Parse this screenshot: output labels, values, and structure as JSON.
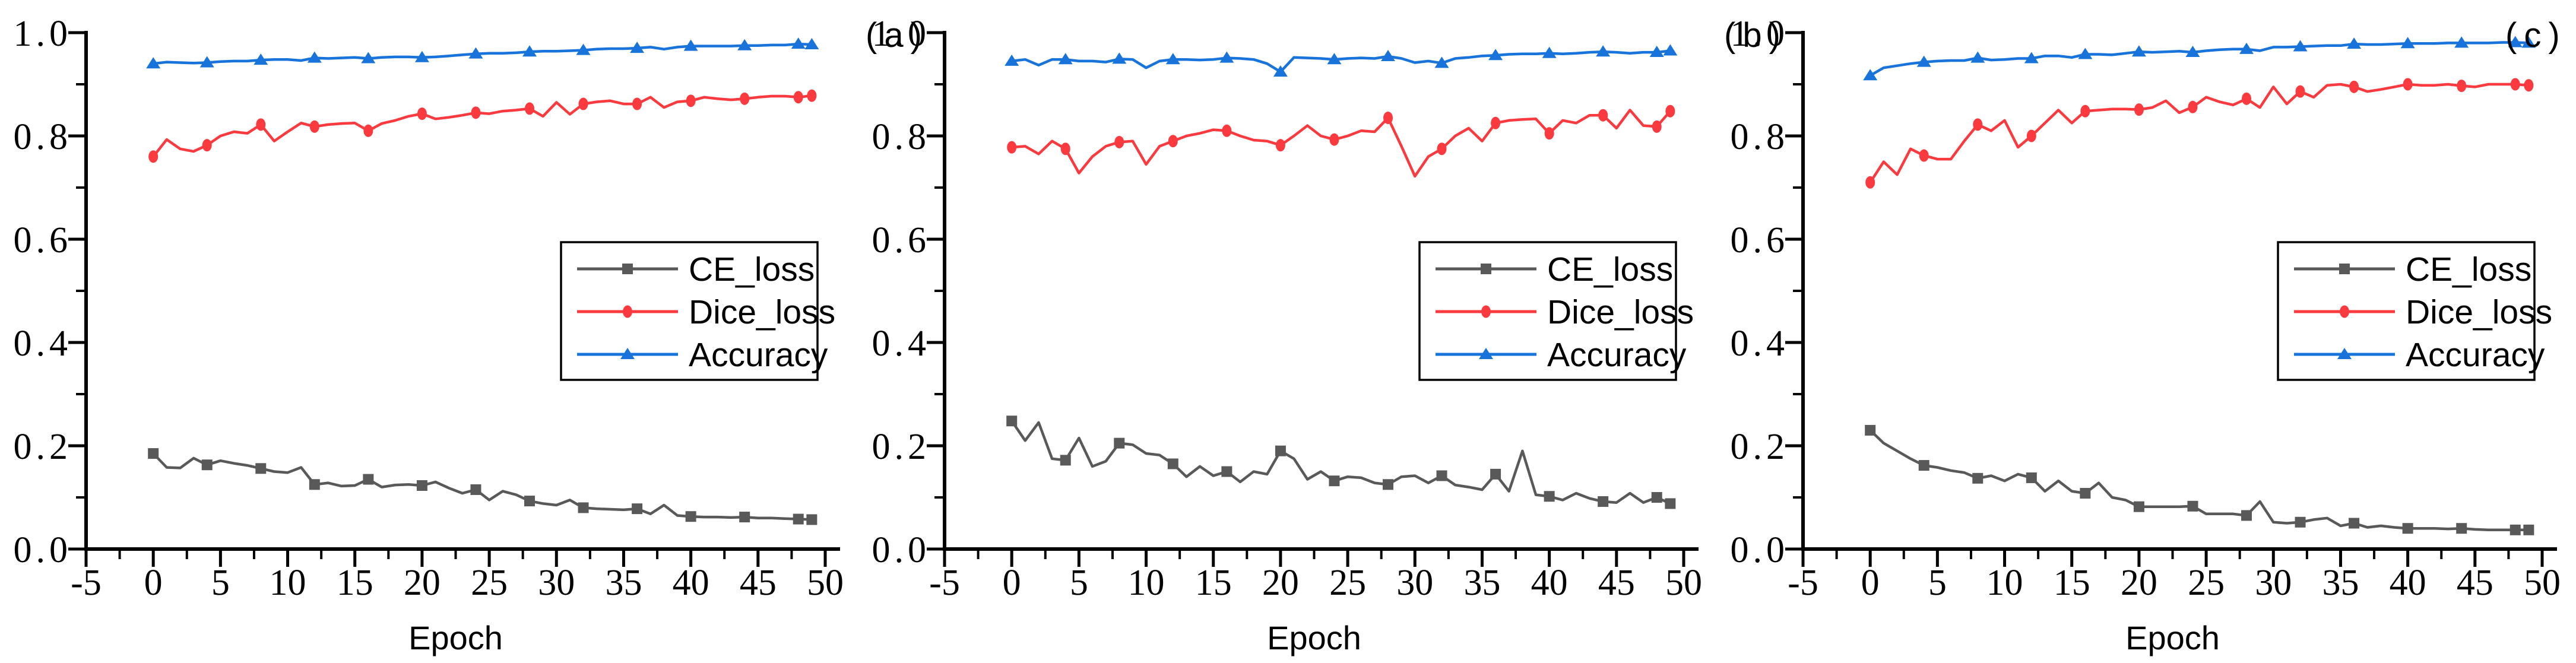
{
  "figure": {
    "background": "#ffffff",
    "panel_labels": [
      "(a)",
      "(b)",
      "(c)"
    ],
    "axis": {
      "xlabel": "Epoch",
      "xlim": [
        -5,
        50
      ],
      "ylim": [
        0.0,
        1.0
      ],
      "x_major_ticks": [
        -5,
        0,
        5,
        10,
        15,
        20,
        25,
        30,
        35,
        40,
        45,
        50
      ],
      "x_tick_labels": [
        "-5",
        "0",
        "5",
        "10",
        "15",
        "20",
        "25",
        "30",
        "35",
        "40",
        "45",
        "50"
      ],
      "x_minor_step": 2.5,
      "y_major_ticks": [
        0.0,
        0.2,
        0.4,
        0.6,
        0.8,
        1.0
      ],
      "y_tick_labels": [
        "0.0",
        "0.2",
        "0.4",
        "0.6",
        "0.8",
        "1.0"
      ],
      "y_minor_step": 0.1,
      "grid": false
    },
    "legend": {
      "position": "center-right",
      "items": [
        {
          "label": "CE_loss",
          "color": "#595959",
          "marker": "square"
        },
        {
          "label": "Dice_loss",
          "color": "#fa3a3e",
          "marker": "circle"
        },
        {
          "label": "Accuracy",
          "color": "#1874da",
          "marker": "triangle"
        }
      ]
    },
    "epochs": [
      0,
      1,
      2,
      3,
      4,
      5,
      6,
      7,
      8,
      9,
      10,
      11,
      12,
      13,
      14,
      15,
      16,
      17,
      18,
      19,
      20,
      21,
      22,
      23,
      24,
      25,
      26,
      27,
      28,
      29,
      30,
      31,
      32,
      33,
      34,
      35,
      36,
      37,
      38,
      39,
      40,
      41,
      42,
      43,
      44,
      45,
      46,
      47,
      48,
      49
    ]
  },
  "chart_data": [
    {
      "type": "line",
      "panel": "(a)",
      "xlabel": "Epoch",
      "xlim": [
        -5,
        50
      ],
      "ylim": [
        0.0,
        1.0
      ],
      "marker_every": 4,
      "marker_last": true,
      "series": [
        {
          "name": "CE_loss",
          "color": "#595959",
          "marker": "square",
          "values": [
            0.185,
            0.158,
            0.157,
            0.176,
            0.163,
            0.171,
            0.166,
            0.162,
            0.156,
            0.15,
            0.148,
            0.158,
            0.125,
            0.128,
            0.122,
            0.123,
            0.135,
            0.12,
            0.124,
            0.125,
            0.123,
            0.13,
            0.118,
            0.108,
            0.115,
            0.095,
            0.112,
            0.105,
            0.093,
            0.088,
            0.085,
            0.095,
            0.08,
            0.078,
            0.077,
            0.076,
            0.078,
            0.068,
            0.085,
            0.065,
            0.063,
            0.062,
            0.062,
            0.061,
            0.062,
            0.06,
            0.06,
            0.059,
            0.058,
            0.057
          ]
        },
        {
          "name": "Dice_loss",
          "color": "#fa3a3e",
          "marker": "circle",
          "values": [
            0.76,
            0.793,
            0.775,
            0.77,
            0.782,
            0.8,
            0.808,
            0.805,
            0.822,
            0.79,
            0.808,
            0.825,
            0.818,
            0.822,
            0.824,
            0.825,
            0.81,
            0.824,
            0.83,
            0.838,
            0.843,
            0.833,
            0.836,
            0.84,
            0.845,
            0.843,
            0.848,
            0.85,
            0.853,
            0.838,
            0.865,
            0.842,
            0.862,
            0.866,
            0.868,
            0.862,
            0.862,
            0.875,
            0.855,
            0.866,
            0.868,
            0.875,
            0.872,
            0.87,
            0.872,
            0.875,
            0.877,
            0.877,
            0.875,
            0.878
          ]
        },
        {
          "name": "Accuracy",
          "color": "#1874da",
          "marker": "triangle",
          "values": [
            0.94,
            0.943,
            0.942,
            0.941,
            0.942,
            0.944,
            0.945,
            0.945,
            0.947,
            0.948,
            0.948,
            0.946,
            0.951,
            0.95,
            0.951,
            0.952,
            0.95,
            0.952,
            0.953,
            0.953,
            0.952,
            0.953,
            0.955,
            0.957,
            0.959,
            0.96,
            0.96,
            0.961,
            0.963,
            0.964,
            0.964,
            0.965,
            0.966,
            0.968,
            0.969,
            0.969,
            0.97,
            0.972,
            0.968,
            0.972,
            0.974,
            0.974,
            0.974,
            0.974,
            0.975,
            0.975,
            0.976,
            0.976,
            0.978,
            0.977
          ]
        }
      ]
    },
    {
      "type": "line",
      "panel": "(b)",
      "xlabel": "Epoch",
      "xlim": [
        -5,
        50
      ],
      "ylim": [
        0.0,
        1.0
      ],
      "marker_every": 4,
      "marker_last": true,
      "series": [
        {
          "name": "CE_loss",
          "color": "#595959",
          "marker": "square",
          "values": [
            0.248,
            0.21,
            0.245,
            0.175,
            0.172,
            0.215,
            0.16,
            0.17,
            0.205,
            0.202,
            0.185,
            0.182,
            0.165,
            0.14,
            0.16,
            0.142,
            0.15,
            0.13,
            0.15,
            0.145,
            0.19,
            0.175,
            0.135,
            0.15,
            0.132,
            0.14,
            0.138,
            0.128,
            0.125,
            0.14,
            0.142,
            0.128,
            0.142,
            0.124,
            0.12,
            0.115,
            0.145,
            0.112,
            0.19,
            0.105,
            0.102,
            0.095,
            0.108,
            0.098,
            0.092,
            0.09,
            0.108,
            0.09,
            0.1,
            0.088
          ]
        },
        {
          "name": "Dice_loss",
          "color": "#fa3a3e",
          "marker": "circle",
          "values": [
            0.778,
            0.78,
            0.765,
            0.79,
            0.775,
            0.728,
            0.76,
            0.78,
            0.788,
            0.79,
            0.745,
            0.78,
            0.79,
            0.8,
            0.805,
            0.812,
            0.81,
            0.8,
            0.792,
            0.79,
            0.782,
            0.8,
            0.82,
            0.8,
            0.793,
            0.8,
            0.81,
            0.808,
            0.835,
            0.78,
            0.722,
            0.76,
            0.775,
            0.8,
            0.815,
            0.79,
            0.825,
            0.83,
            0.832,
            0.833,
            0.805,
            0.83,
            0.825,
            0.84,
            0.84,
            0.815,
            0.85,
            0.82,
            0.818,
            0.848
          ]
        },
        {
          "name": "Accuracy",
          "color": "#1874da",
          "marker": "triangle",
          "values": [
            0.945,
            0.948,
            0.937,
            0.948,
            0.948,
            0.945,
            0.945,
            0.943,
            0.949,
            0.948,
            0.932,
            0.945,
            0.948,
            0.948,
            0.947,
            0.948,
            0.951,
            0.95,
            0.948,
            0.94,
            0.924,
            0.952,
            0.951,
            0.95,
            0.948,
            0.95,
            0.951,
            0.95,
            0.954,
            0.95,
            0.942,
            0.945,
            0.941,
            0.95,
            0.952,
            0.955,
            0.956,
            0.958,
            0.959,
            0.959,
            0.96,
            0.959,
            0.96,
            0.962,
            0.963,
            0.962,
            0.96,
            0.962,
            0.962,
            0.965
          ]
        }
      ]
    },
    {
      "type": "line",
      "panel": "(c)",
      "xlabel": "Epoch",
      "xlim": [
        -5,
        50
      ],
      "ylim": [
        0.0,
        1.0
      ],
      "marker_every": 4,
      "marker_last": true,
      "series": [
        {
          "name": "CE_loss",
          "color": "#595959",
          "marker": "square",
          "values": [
            0.23,
            0.205,
            0.19,
            0.175,
            0.162,
            0.158,
            0.152,
            0.148,
            0.137,
            0.142,
            0.132,
            0.145,
            0.138,
            0.112,
            0.132,
            0.112,
            0.108,
            0.128,
            0.1,
            0.095,
            0.082,
            0.082,
            0.082,
            0.082,
            0.083,
            0.068,
            0.068,
            0.068,
            0.065,
            0.092,
            0.052,
            0.05,
            0.052,
            0.057,
            0.06,
            0.045,
            0.05,
            0.042,
            0.045,
            0.042,
            0.04,
            0.04,
            0.04,
            0.039,
            0.04,
            0.038,
            0.037,
            0.037,
            0.037,
            0.037
          ]
        },
        {
          "name": "Dice_loss",
          "color": "#fa3a3e",
          "marker": "circle",
          "values": [
            0.71,
            0.75,
            0.725,
            0.775,
            0.762,
            0.755,
            0.755,
            0.79,
            0.822,
            0.81,
            0.83,
            0.778,
            0.8,
            0.825,
            0.85,
            0.825,
            0.848,
            0.85,
            0.852,
            0.852,
            0.851,
            0.855,
            0.868,
            0.845,
            0.856,
            0.875,
            0.866,
            0.86,
            0.872,
            0.855,
            0.895,
            0.862,
            0.886,
            0.875,
            0.898,
            0.9,
            0.895,
            0.886,
            0.89,
            0.895,
            0.9,
            0.898,
            0.898,
            0.9,
            0.897,
            0.895,
            0.9,
            0.9,
            0.9,
            0.898
          ]
        },
        {
          "name": "Accuracy",
          "color": "#1874da",
          "marker": "triangle",
          "values": [
            0.917,
            0.932,
            0.936,
            0.94,
            0.943,
            0.945,
            0.946,
            0.946,
            0.951,
            0.947,
            0.948,
            0.95,
            0.95,
            0.955,
            0.955,
            0.952,
            0.958,
            0.958,
            0.957,
            0.96,
            0.963,
            0.962,
            0.963,
            0.964,
            0.962,
            0.965,
            0.967,
            0.968,
            0.968,
            0.965,
            0.972,
            0.972,
            0.973,
            0.974,
            0.975,
            0.975,
            0.978,
            0.977,
            0.977,
            0.978,
            0.979,
            0.979,
            0.979,
            0.98,
            0.98,
            0.98,
            0.98,
            0.981,
            0.981,
            0.98
          ]
        }
      ]
    }
  ]
}
